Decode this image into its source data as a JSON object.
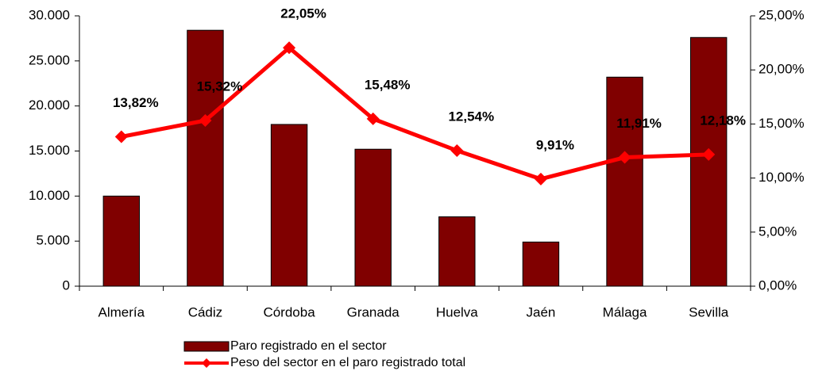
{
  "chart_data": {
    "type": "bar",
    "categories": [
      "Almería",
      "Cádiz",
      "Córdoba",
      "Granada",
      "Huelva",
      "Jaén",
      "Málaga",
      "Sevilla"
    ],
    "series": [
      {
        "name": "Paro registrado en el sector",
        "type": "bar",
        "color": "#800000",
        "values": [
          10000,
          28400,
          17950,
          15200,
          7700,
          4900,
          23200,
          27600
        ]
      },
      {
        "name": "Peso del sector en el paro registrado total",
        "type": "line",
        "color": "#ff0000",
        "axis": "y2",
        "values": [
          13.82,
          15.32,
          22.05,
          15.48,
          12.54,
          9.91,
          11.91,
          12.18
        ],
        "value_labels": [
          "13,82%",
          "15,32%",
          "22,05%",
          "15,48%",
          "12,54%",
          "9,91%",
          "11,91%",
          "12,18%"
        ]
      }
    ],
    "ylim": [
      0,
      30000
    ],
    "yticks": [
      0,
      {
        "value": 5000,
        "label": "5.000"
      },
      {
        "value": 10000,
        "label": "10.000"
      },
      {
        "value": 15000,
        "label": "15.000"
      },
      {
        "value": 20000,
        "label": "20.000"
      },
      {
        "value": 25000,
        "label": "25.000"
      },
      {
        "value": 30000,
        "label": "30.000"
      }
    ],
    "y2lim": [
      0,
      25
    ],
    "y2ticks": [
      {
        "value": 0,
        "label": "0,00%"
      },
      {
        "value": 5,
        "label": "5,00%"
      },
      {
        "value": 10,
        "label": "10,00%"
      },
      {
        "value": 15,
        "label": "15,00%"
      },
      {
        "value": 20,
        "label": "20,00%"
      },
      {
        "value": 25,
        "label": "25,00%"
      }
    ],
    "grid": false,
    "legend": "bottom"
  }
}
